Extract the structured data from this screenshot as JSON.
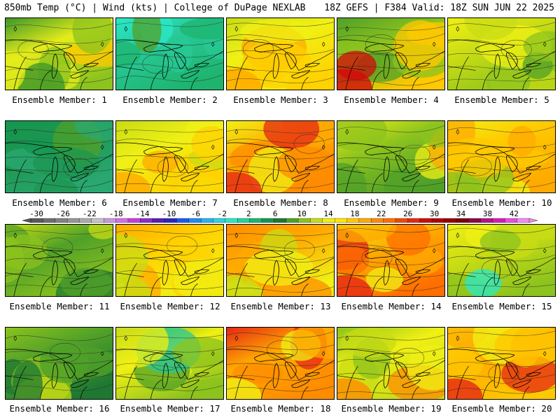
{
  "header": {
    "left": "850mb Temp (°C) | Wind (kts) | College of DuPage NEXLAB",
    "right": "18Z GEFS | F384 Valid: 18Z SUN JUN 22 2025"
  },
  "colorbar": {
    "labels": [
      "-30",
      "-26",
      "-22",
      "-18",
      "-14",
      "-10",
      "-6",
      "-2",
      "2",
      "6",
      "10",
      "14",
      "18",
      "22",
      "26",
      "30",
      "34",
      "38",
      "42"
    ],
    "colors": [
      "#5a5a5a",
      "#6e6e6e",
      "#828282",
      "#979797",
      "#ababab",
      "#c4c4c4",
      "#c998e0",
      "#d46ee8",
      "#c640d6",
      "#8c30c8",
      "#5a20b4",
      "#2828c0",
      "#1e5ae6",
      "#1e8cf0",
      "#28b4f0",
      "#32d2dc",
      "#2ae8c8",
      "#28d296",
      "#1eb46e",
      "#149650",
      "#1e7832",
      "#50a028",
      "#8cc31e",
      "#c8dc14",
      "#f0f014",
      "#ffe600",
      "#ffc800",
      "#ffaa00",
      "#ff8c00",
      "#ff6e00",
      "#f04a00",
      "#e62814",
      "#d20a0a",
      "#b40000",
      "#960000",
      "#780000",
      "#8c0a46",
      "#b41482",
      "#d21eb4",
      "#e650dc",
      "#f08cf0"
    ]
  },
  "members": [
    {
      "label": "Ensemble Member: 1",
      "colors": [
        "#e4ec1a",
        "#8cc31e",
        "#3c9628",
        "#ffc800"
      ],
      "warmth": 2
    },
    {
      "label": "Ensemble Member: 2",
      "colors": [
        "#28c896",
        "#1eb46e",
        "#2ae8c8",
        "#50a028"
      ],
      "warmth": 1
    },
    {
      "label": "Ensemble Member: 3",
      "colors": [
        "#f0f014",
        "#ffd200",
        "#c8dc14",
        "#ffaa00"
      ],
      "warmth": 3
    },
    {
      "label": "Ensemble Member: 4",
      "colors": [
        "#8cc31e",
        "#ffc800",
        "#50a028",
        "#d20a0a"
      ],
      "warmth": 3
    },
    {
      "label": "Ensemble Member: 5",
      "colors": [
        "#c8dc14",
        "#8cc31e",
        "#f0f014",
        "#50a028"
      ],
      "warmth": 2
    },
    {
      "label": "Ensemble Member: 6",
      "colors": [
        "#1e9650",
        "#2aa872",
        "#149650",
        "#50a028"
      ],
      "warmth": 1
    },
    {
      "label": "Ensemble Member: 7",
      "colors": [
        "#f0f014",
        "#ffd200",
        "#c8dc14",
        "#ffaa00"
      ],
      "warmth": 3
    },
    {
      "label": "Ensemble Member: 8",
      "colors": [
        "#ffaa00",
        "#ff8c00",
        "#f0f014",
        "#e62814"
      ],
      "warmth": 4
    },
    {
      "label": "Ensemble Member: 9",
      "colors": [
        "#8cc31e",
        "#50a028",
        "#f0f014",
        "#ffaa00"
      ],
      "warmth": 2
    },
    {
      "label": "Ensemble Member: 10",
      "colors": [
        "#ffc800",
        "#ffaa00",
        "#f0f014",
        "#8cc31e"
      ],
      "warmth": 3
    },
    {
      "label": "Ensemble Member: 11",
      "colors": [
        "#50a028",
        "#8cc31e",
        "#c8dc14",
        "#1e7832"
      ],
      "warmth": 1
    },
    {
      "label": "Ensemble Member: 12",
      "colors": [
        "#ffd200",
        "#f0f014",
        "#ffaa00",
        "#c8dc14"
      ],
      "warmth": 3
    },
    {
      "label": "Ensemble Member: 13",
      "colors": [
        "#ffaa00",
        "#f0f014",
        "#ff8c00",
        "#c8dc14"
      ],
      "warmth": 3
    },
    {
      "label": "Ensemble Member: 14",
      "colors": [
        "#ffaa00",
        "#ff6e00",
        "#f0f014",
        "#e62814"
      ],
      "warmth": 4
    },
    {
      "label": "Ensemble Member: 15",
      "colors": [
        "#c8dc14",
        "#8cc31e",
        "#f0f014",
        "#2ae8c8"
      ],
      "warmth": 2
    },
    {
      "label": "Ensemble Member: 16",
      "colors": [
        "#50a028",
        "#1e7832",
        "#8cc31e",
        "#c8dc14"
      ],
      "warmth": 1
    },
    {
      "label": "Ensemble Member: 17",
      "colors": [
        "#f0f014",
        "#8cc31e",
        "#50a028",
        "#28c896"
      ],
      "warmth": 2
    },
    {
      "label": "Ensemble Member: 18",
      "colors": [
        "#ffaa00",
        "#ff8c00",
        "#e62814",
        "#f0f014"
      ],
      "warmth": 4
    },
    {
      "label": "Ensemble Member: 19",
      "colors": [
        "#f0f014",
        "#c8dc14",
        "#8cc31e",
        "#ff8c00"
      ],
      "warmth": 3
    },
    {
      "label": "Ensemble Member: 20",
      "colors": [
        "#ffaa00",
        "#ffc800",
        "#f0f014",
        "#e62814"
      ],
      "warmth": 3
    }
  ]
}
